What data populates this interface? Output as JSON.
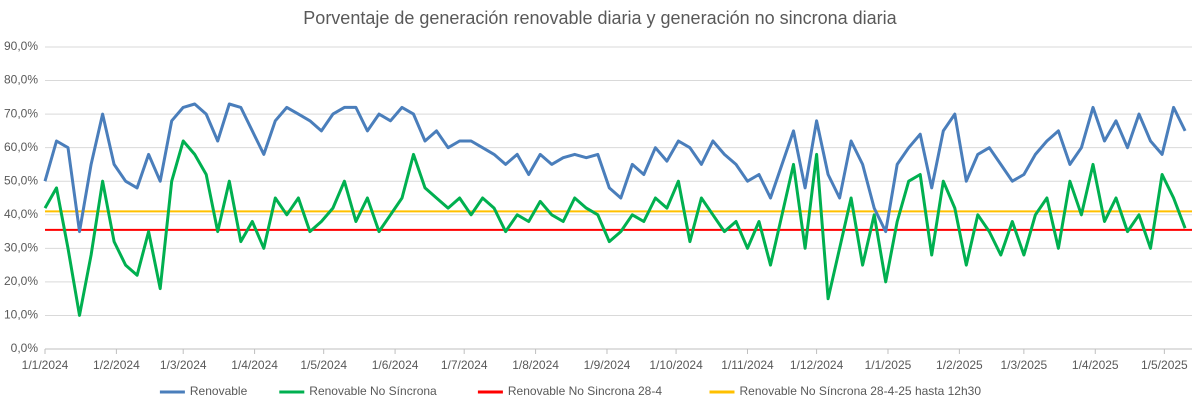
{
  "chart_data": {
    "type": "line",
    "title": "Porventaje de generación renovable diaria y generación no sincrona diaria",
    "x": [
      "2024-01-01",
      "2024-01-06",
      "2024-01-11",
      "2024-01-16",
      "2024-01-21",
      "2024-01-26",
      "2024-01-31",
      "2024-02-05",
      "2024-02-10",
      "2024-02-15",
      "2024-02-20",
      "2024-02-25",
      "2024-03-01",
      "2024-03-06",
      "2024-03-11",
      "2024-03-16",
      "2024-03-21",
      "2024-03-26",
      "2024-03-31",
      "2024-04-05",
      "2024-04-10",
      "2024-04-15",
      "2024-04-20",
      "2024-04-25",
      "2024-04-30",
      "2024-05-05",
      "2024-05-10",
      "2024-05-15",
      "2024-05-20",
      "2024-05-25",
      "2024-05-30",
      "2024-06-04",
      "2024-06-09",
      "2024-06-14",
      "2024-06-19",
      "2024-06-24",
      "2024-06-29",
      "2024-07-04",
      "2024-07-09",
      "2024-07-14",
      "2024-07-19",
      "2024-07-24",
      "2024-07-29",
      "2024-08-03",
      "2024-08-08",
      "2024-08-13",
      "2024-08-18",
      "2024-08-23",
      "2024-08-28",
      "2024-09-02",
      "2024-09-07",
      "2024-09-12",
      "2024-09-17",
      "2024-09-22",
      "2024-09-27",
      "2024-10-02",
      "2024-10-07",
      "2024-10-12",
      "2024-10-17",
      "2024-10-22",
      "2024-10-27",
      "2024-11-01",
      "2024-11-06",
      "2024-11-11",
      "2024-11-16",
      "2024-11-21",
      "2024-11-26",
      "2024-12-01",
      "2024-12-06",
      "2024-12-11",
      "2024-12-16",
      "2024-12-21",
      "2024-12-26",
      "2024-12-31",
      "2025-01-05",
      "2025-01-10",
      "2025-01-15",
      "2025-01-20",
      "2025-01-25",
      "2025-01-30",
      "2025-02-04",
      "2025-02-09",
      "2025-02-14",
      "2025-02-19",
      "2025-02-24",
      "2025-03-01",
      "2025-03-06",
      "2025-03-11",
      "2025-03-16",
      "2025-03-21",
      "2025-03-26",
      "2025-03-31",
      "2025-04-05",
      "2025-04-10",
      "2025-04-15",
      "2025-04-20",
      "2025-04-25",
      "2025-04-30",
      "2025-05-05",
      "2025-05-10"
    ],
    "series": [
      {
        "name": "Renovable",
        "color": "#4a7ebb",
        "values": [
          50,
          62,
          60,
          35,
          55,
          70,
          55,
          50,
          48,
          58,
          50,
          68,
          72,
          73,
          70,
          62,
          73,
          72,
          65,
          58,
          68,
          72,
          70,
          68,
          65,
          70,
          72,
          72,
          65,
          70,
          68,
          72,
          70,
          62,
          65,
          60,
          62,
          62,
          60,
          58,
          55,
          58,
          52,
          58,
          55,
          57,
          58,
          57,
          58,
          48,
          45,
          55,
          52,
          60,
          56,
          62,
          60,
          55,
          62,
          58,
          55,
          50,
          52,
          45,
          55,
          65,
          48,
          68,
          52,
          45,
          62,
          55,
          42,
          35,
          55,
          60,
          64,
          48,
          65,
          70,
          50,
          58,
          60,
          55,
          50,
          52,
          58,
          62,
          65,
          55,
          60,
          72,
          62,
          68,
          60,
          70,
          62,
          58,
          72,
          65
        ]
      },
      {
        "name": "Renovable No Síncrona",
        "color": "#00b050",
        "values": [
          42,
          48,
          30,
          10,
          28,
          50,
          32,
          25,
          22,
          35,
          18,
          50,
          62,
          58,
          52,
          35,
          50,
          32,
          38,
          30,
          45,
          40,
          45,
          35,
          38,
          42,
          50,
          38,
          45,
          35,
          40,
          45,
          58,
          48,
          45,
          42,
          45,
          40,
          45,
          42,
          35,
          40,
          38,
          44,
          40,
          38,
          45,
          42,
          40,
          32,
          35,
          40,
          38,
          45,
          42,
          50,
          32,
          45,
          40,
          35,
          38,
          30,
          38,
          25,
          40,
          55,
          30,
          58,
          15,
          30,
          45,
          25,
          40,
          20,
          38,
          50,
          52,
          28,
          50,
          42,
          25,
          40,
          35,
          28,
          38,
          28,
          40,
          45,
          30,
          50,
          40,
          55,
          38,
          45,
          35,
          40,
          30,
          52,
          45,
          36
        ]
      }
    ],
    "hlines": [
      {
        "name": "Renovable No Sincrona 28-4",
        "color": "#ff0000",
        "value": 35.5
      },
      {
        "name": "Renovable No Síncrona 28-4-25 hasta 12h30",
        "color": "#ffc000",
        "value": 41
      }
    ],
    "xlim": [
      "2024-01-01",
      "2025-05-13"
    ],
    "xticks": [
      {
        "value": "2024-01-01",
        "label": "1/1/2024"
      },
      {
        "value": "2024-02-01",
        "label": "1/2/2024"
      },
      {
        "value": "2024-03-01",
        "label": "1/3/2024"
      },
      {
        "value": "2024-04-01",
        "label": "1/4/2024"
      },
      {
        "value": "2024-05-01",
        "label": "1/5/2024"
      },
      {
        "value": "2024-06-01",
        "label": "1/6/2024"
      },
      {
        "value": "2024-07-01",
        "label": "1/7/2024"
      },
      {
        "value": "2024-08-01",
        "label": "1/8/2024"
      },
      {
        "value": "2024-09-01",
        "label": "1/9/2024"
      },
      {
        "value": "2024-10-01",
        "label": "1/10/2024"
      },
      {
        "value": "2024-11-01",
        "label": "1/11/2024"
      },
      {
        "value": "2024-12-01",
        "label": "1/12/2024"
      },
      {
        "value": "2025-01-01",
        "label": "1/1/2025"
      },
      {
        "value": "2025-02-01",
        "label": "1/2/2025"
      },
      {
        "value": "2025-03-01",
        "label": "1/3/2025"
      },
      {
        "value": "2025-04-01",
        "label": "1/4/2025"
      },
      {
        "value": "2025-05-01",
        "label": "1/5/2025"
      }
    ],
    "ylim": [
      0,
      90
    ],
    "yticks": [
      {
        "value": 0,
        "label": "0,0%"
      },
      {
        "value": 10,
        "label": "10,0%"
      },
      {
        "value": 20,
        "label": "20,0%"
      },
      {
        "value": 30,
        "label": "30,0%"
      },
      {
        "value": 40,
        "label": "40,0%"
      },
      {
        "value": 50,
        "label": "50,0%"
      },
      {
        "value": 60,
        "label": "60,0%"
      },
      {
        "value": 70,
        "label": "70,0%"
      },
      {
        "value": 80,
        "label": "80,0%"
      },
      {
        "value": 90,
        "label": "90,0%"
      }
    ],
    "grid": true,
    "legend": "bottom"
  }
}
